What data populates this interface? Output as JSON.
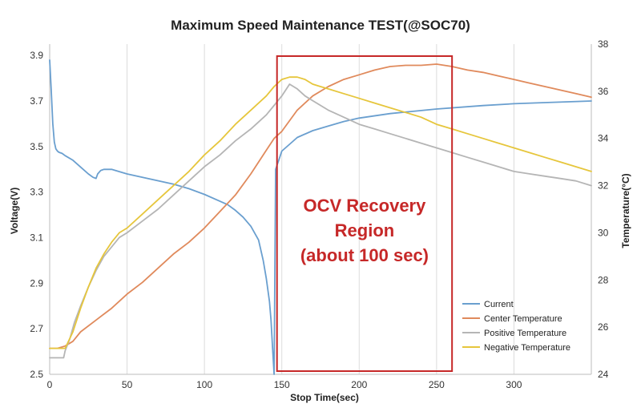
{
  "chart_data": {
    "type": "line",
    "title": "Maximum Speed Maintenance TEST(@SOC70)",
    "xlabel": "Stop Time(sec)",
    "ylabel": "Voltage(V)",
    "y2label": "Temperature(°C)",
    "xlim": [
      0,
      350
    ],
    "ylim": [
      2.5,
      3.95
    ],
    "y2lim": [
      24,
      38
    ],
    "x_ticks": [
      0,
      50,
      100,
      150,
      200,
      250,
      300
    ],
    "y_ticks": [
      2.5,
      2.7,
      2.9,
      3.1,
      3.3,
      3.5,
      3.7,
      3.9
    ],
    "y2_ticks": [
      24,
      26,
      28,
      30,
      32,
      34,
      36,
      38
    ],
    "grid_x": true,
    "grid_y": false,
    "legend_position": "bottom-right",
    "series": [
      {
        "name": "Current",
        "axis": "left",
        "color": "#6a9fcf",
        "x": [
          0,
          1,
          2,
          3,
          4,
          5,
          6,
          8,
          10,
          15,
          20,
          25,
          28,
          30,
          31,
          33,
          35,
          38,
          40,
          45,
          50,
          60,
          70,
          80,
          90,
          100,
          110,
          115,
          120,
          125,
          130,
          135,
          138,
          140,
          142,
          143,
          144,
          145,
          146,
          147,
          148,
          150,
          155,
          160,
          170,
          180,
          190,
          200,
          220,
          250,
          280,
          300,
          320,
          350
        ],
        "y": [
          3.88,
          3.75,
          3.6,
          3.52,
          3.49,
          3.48,
          3.475,
          3.47,
          3.46,
          3.44,
          3.41,
          3.38,
          3.365,
          3.36,
          3.38,
          3.395,
          3.4,
          3.4,
          3.4,
          3.39,
          3.38,
          3.365,
          3.35,
          3.335,
          3.315,
          3.29,
          3.26,
          3.245,
          3.22,
          3.19,
          3.15,
          3.09,
          3.0,
          2.92,
          2.82,
          2.74,
          2.62,
          2.5,
          3.4,
          3.42,
          3.44,
          3.48,
          3.51,
          3.54,
          3.57,
          3.59,
          3.61,
          3.625,
          3.645,
          3.665,
          3.68,
          3.688,
          3.693,
          3.7
        ]
      },
      {
        "name": "Center Temperature",
        "axis": "right",
        "color": "#e08a5c",
        "x": [
          0,
          5,
          10,
          15,
          20,
          30,
          40,
          50,
          60,
          70,
          80,
          90,
          100,
          110,
          120,
          130,
          140,
          145,
          150,
          160,
          170,
          180,
          190,
          200,
          210,
          220,
          230,
          240,
          250,
          260,
          270,
          280,
          290,
          300,
          310,
          320,
          330,
          340,
          350
        ],
        "y": [
          25.1,
          25.1,
          25.2,
          25.4,
          25.8,
          26.3,
          26.8,
          27.4,
          27.9,
          28.5,
          29.1,
          29.6,
          30.2,
          30.9,
          31.6,
          32.5,
          33.5,
          34,
          34.3,
          35.2,
          35.8,
          36.2,
          36.5,
          36.7,
          36.9,
          37.05,
          37.1,
          37.1,
          37.15,
          37.05,
          36.9,
          36.8,
          36.65,
          36.5,
          36.35,
          36.2,
          36.05,
          35.9,
          35.75
        ]
      },
      {
        "name": "Positive Temperature",
        "axis": "right",
        "color": "#b5b5b5",
        "x": [
          0,
          5,
          9,
          10,
          13,
          16,
          20,
          25,
          30,
          35,
          40,
          45,
          50,
          60,
          70,
          80,
          90,
          100,
          110,
          120,
          130,
          140,
          145,
          150,
          155,
          160,
          165,
          170,
          175,
          180,
          190,
          200,
          210,
          220,
          230,
          240,
          250,
          260,
          270,
          280,
          290,
          300,
          310,
          320,
          330,
          340,
          350
        ],
        "y": [
          24.7,
          24.7,
          24.7,
          25.0,
          25.5,
          26.2,
          26.9,
          27.7,
          28.4,
          29.0,
          29.4,
          29.8,
          30.0,
          30.5,
          31.0,
          31.6,
          32.2,
          32.8,
          33.3,
          33.9,
          34.4,
          35.0,
          35.4,
          35.8,
          36.3,
          36.1,
          35.8,
          35.6,
          35.4,
          35.2,
          34.9,
          34.6,
          34.4,
          34.2,
          34.0,
          33.8,
          33.6,
          33.4,
          33.2,
          33.0,
          32.8,
          32.6,
          32.5,
          32.4,
          32.3,
          32.2,
          32.0
        ]
      },
      {
        "name": "Negative Temperature",
        "axis": "right",
        "color": "#e6c63c",
        "x": [
          0,
          5,
          10,
          15,
          20,
          25,
          30,
          35,
          40,
          45,
          50,
          60,
          70,
          80,
          90,
          100,
          110,
          120,
          130,
          140,
          145,
          150,
          155,
          160,
          165,
          170,
          175,
          180,
          190,
          200,
          210,
          220,
          230,
          240,
          250,
          260,
          270,
          280,
          290,
          300,
          310,
          320,
          330,
          340,
          350
        ],
        "y": [
          25.1,
          25.1,
          25.1,
          25.8,
          26.8,
          27.7,
          28.5,
          29.1,
          29.6,
          30.0,
          30.2,
          30.8,
          31.4,
          32.0,
          32.6,
          33.3,
          33.9,
          34.6,
          35.2,
          35.8,
          36.2,
          36.5,
          36.6,
          36.6,
          36.5,
          36.3,
          36.2,
          36.1,
          35.9,
          35.7,
          35.5,
          35.3,
          35.1,
          34.9,
          34.6,
          34.4,
          34.2,
          34.0,
          33.8,
          33.6,
          33.4,
          33.2,
          33.0,
          32.8,
          32.6
        ]
      }
    ],
    "annotation": {
      "lines": [
        "OCV Recovery",
        "Region",
        "(about 100 sec)"
      ],
      "x_range": [
        150,
        260
      ],
      "color": "#c62828"
    }
  }
}
